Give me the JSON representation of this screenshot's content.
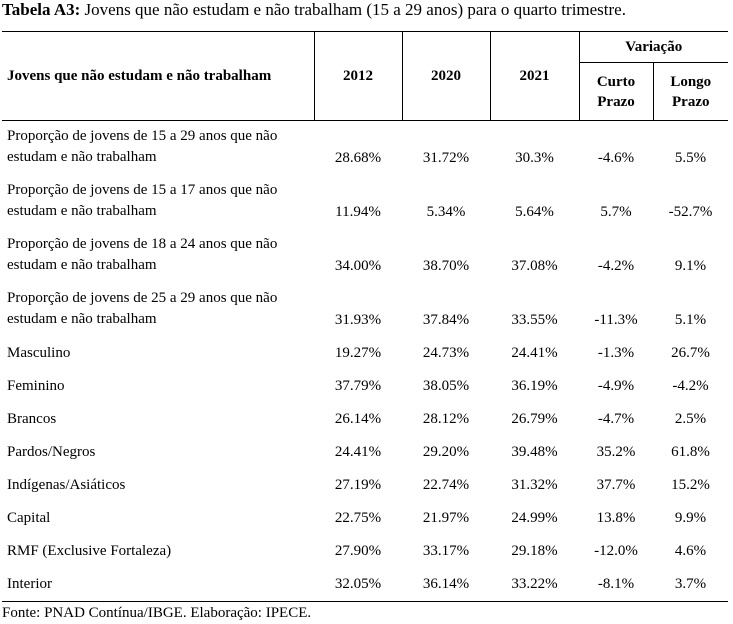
{
  "caption": {
    "label": "Tabela A3:",
    "text": " Jovens que não estudam e não trabalham (15 a 29 anos) para o quarto trimestre."
  },
  "table": {
    "header": {
      "row_label": "Jovens que não estudam e não trabalham",
      "year_2012": "2012",
      "year_2020": "2020",
      "year_2021": "2021",
      "variation": "Variação",
      "short_line1": "Curto",
      "short_line2": "Prazo",
      "long_line1": "Longo",
      "long_line2": "Prazo"
    },
    "rows": [
      {
        "label": "Proporção de jovens de 15 a 29 anos que não estudam e não trabalham",
        "v2012": "28.68%",
        "v2020": "31.72%",
        "v2021": "30.3%",
        "short": "-4.6%",
        "long": "5.5%"
      },
      {
        "label": "Proporção de jovens de 15 a 17 anos que não estudam e não trabalham",
        "v2012": "11.94%",
        "v2020": "5.34%",
        "v2021": "5.64%",
        "short": "5.7%",
        "long": "-52.7%"
      },
      {
        "label": "Proporção de jovens de 18 a 24 anos que não estudam e não trabalham",
        "v2012": "34.00%",
        "v2020": "38.70%",
        "v2021": "37.08%",
        "short": "-4.2%",
        "long": "9.1%"
      },
      {
        "label": "Proporção de jovens de 25 a 29 anos que não estudam e não trabalham",
        "v2012": "31.93%",
        "v2020": "37.84%",
        "v2021": "33.55%",
        "short": "-11.3%",
        "long": "5.1%"
      },
      {
        "label": "Masculino",
        "v2012": "19.27%",
        "v2020": "24.73%",
        "v2021": "24.41%",
        "short": "-1.3%",
        "long": "26.7%"
      },
      {
        "label": "Feminino",
        "v2012": "37.79%",
        "v2020": "38.05%",
        "v2021": "36.19%",
        "short": "-4.9%",
        "long": "-4.2%"
      },
      {
        "label": "Brancos",
        "v2012": "26.14%",
        "v2020": "28.12%",
        "v2021": "26.79%",
        "short": "-4.7%",
        "long": "2.5%"
      },
      {
        "label": "Pardos/Negros",
        "v2012": "24.41%",
        "v2020": "29.20%",
        "v2021": "39.48%",
        "short": "35.2%",
        "long": "61.8%"
      },
      {
        "label": "Indígenas/Asiáticos",
        "v2012": "27.19%",
        "v2020": "22.74%",
        "v2021": "31.32%",
        "short": "37.7%",
        "long": "15.2%"
      },
      {
        "label": "Capital",
        "v2012": "22.75%",
        "v2020": "21.97%",
        "v2021": "24.99%",
        "short": "13.8%",
        "long": "9.9%"
      },
      {
        "label": "RMF (Exclusive Fortaleza)",
        "v2012": "27.90%",
        "v2020": "33.17%",
        "v2021": "29.18%",
        "short": "-12.0%",
        "long": "4.6%"
      },
      {
        "label": "Interior",
        "v2012": "32.05%",
        "v2020": "36.14%",
        "v2021": "33.22%",
        "short": "-8.1%",
        "long": "3.7%"
      }
    ]
  },
  "footer": {
    "source": "Fonte: PNAD Contínua/IBGE. Elaboração: IPECE."
  }
}
